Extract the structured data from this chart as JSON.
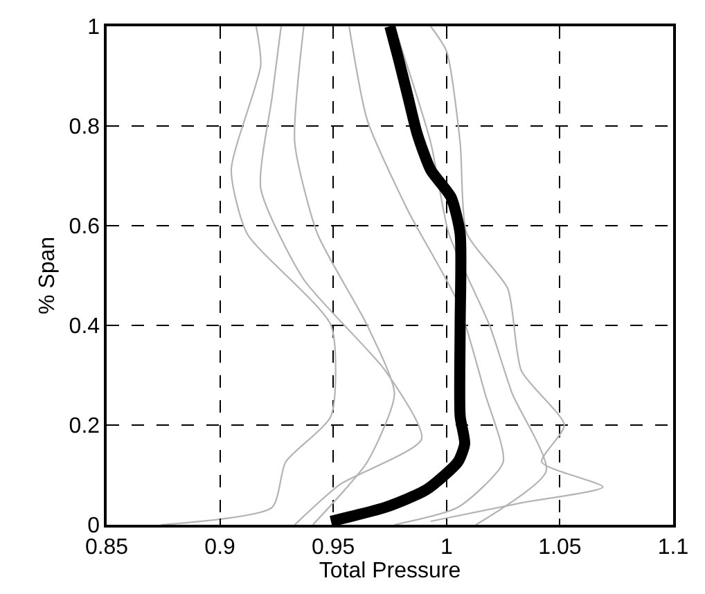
{
  "chart_data": {
    "type": "line",
    "xlabel": "Total Pressure",
    "ylabel": "% Span",
    "xlim": [
      0.85,
      1.1
    ],
    "xticks": [
      0.85,
      0.9,
      0.95,
      1,
      1.05,
      1.1
    ],
    "ylim": [
      0,
      1
    ],
    "yticks": [
      0,
      0.2,
      0.4,
      0.6,
      0.8,
      1
    ],
    "grid": true,
    "marker": "none",
    "line_style": "solid",
    "series": [
      {
        "color": "#b3b3b3",
        "x": [
          0.874,
          0.923,
          0.929,
          0.949,
          0.949,
          0.912,
          0.905,
          0.918,
          0.916
        ],
        "values": [
          0,
          0.035,
          0.126,
          0.218,
          0.4,
          0.584,
          0.712,
          0.922,
          1
        ]
      },
      {
        "color": "#b3b3b3",
        "x": [
          0.993,
          1.033,
          1.069,
          1.042,
          1.052,
          1.033,
          1.027,
          1.009,
          1.006,
          1.0,
          0.993
        ],
        "values": [
          0.007,
          0.044,
          0.076,
          0.126,
          0.2,
          0.309,
          0.474,
          0.584,
          0.767,
          0.95,
          1
        ]
      },
      {
        "color": "#b3b3b3",
        "x": [
          0.941,
          0.965,
          0.977,
          0.965,
          0.943,
          0.933,
          0.937
        ],
        "values": [
          0,
          0.126,
          0.263,
          0.4,
          0.584,
          0.767,
          1
        ]
      },
      {
        "color": "#b3b3b3",
        "x": [
          0.977,
          1.005,
          1.025,
          1.017,
          1.005,
          0.983,
          0.965,
          0.957
        ],
        "values": [
          0,
          0.035,
          0.126,
          0.263,
          0.446,
          0.63,
          0.812,
          1
        ]
      },
      {
        "color": "#b3b3b3",
        "x": [
          0.933,
          0.953,
          0.989,
          0.973,
          0.937,
          0.918,
          0.923,
          0.927
        ],
        "values": [
          0,
          0.081,
          0.172,
          0.309,
          0.492,
          0.675,
          0.858,
          1
        ]
      },
      {
        "color": "#b3b3b3",
        "x": [
          1.013,
          1.044,
          1.029,
          1.019,
          1.001,
          0.993,
          0.977
        ],
        "values": [
          0,
          0.108,
          0.263,
          0.4,
          0.584,
          0.767,
          1
        ]
      },
      {
        "color": "#000000",
        "x": [
          0.949,
          0.973,
          0.991,
          1.005,
          1.008,
          1.006,
          1.006,
          1.006,
          1.002,
          0.993,
          0.987,
          0.983,
          0.979,
          0.975
        ],
        "values": [
          0.007,
          0.035,
          0.07,
          0.126,
          0.163,
          0.218,
          0.4,
          0.584,
          0.657,
          0.712,
          0.785,
          0.858,
          0.931,
          1
        ]
      }
    ]
  }
}
